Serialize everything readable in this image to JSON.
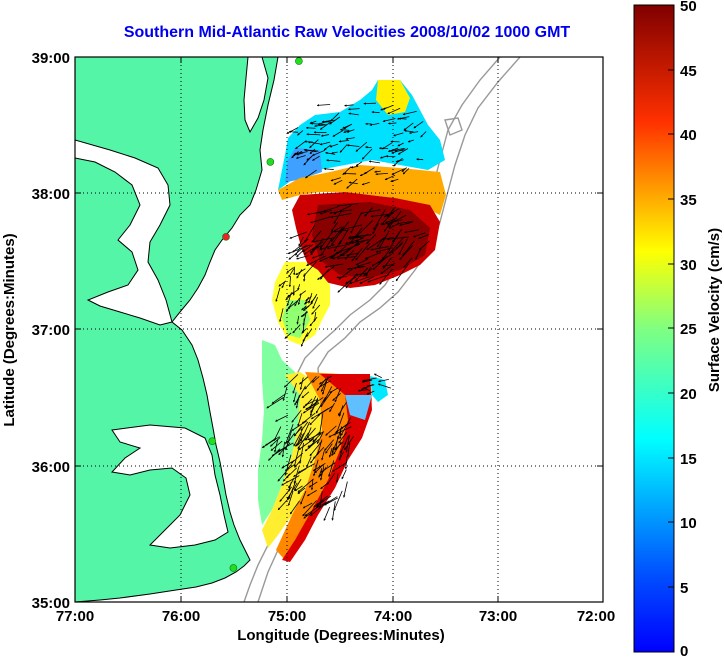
{
  "title": "Southern Mid-Atlantic Raw Velocities 2008/10/02 1000 GMT",
  "x_axis": {
    "label": "Longitude (Degrees:Minutes)",
    "ticks": [
      "77:00",
      "76:00",
      "75:00",
      "74:00",
      "73:00",
      "72:00"
    ]
  },
  "y_axis": {
    "label": "Latitude (Degrees:Minutes)",
    "ticks": [
      "39:00",
      "38:00",
      "37:00",
      "36:00",
      "35:00"
    ]
  },
  "colorbar": {
    "label": "Surface Velocity (cm/s)",
    "ticks": [
      "50",
      "45",
      "40",
      "35",
      "30",
      "25",
      "20",
      "15",
      "10",
      "5",
      "0"
    ],
    "min": 0,
    "max": 50,
    "colormap": "jet"
  },
  "colors": {
    "land": "#55f5a8",
    "title": "#0000ee",
    "coast": "#000000",
    "bathymetry": "#999999",
    "station": "#22dd22",
    "station_alt": "#ee2222"
  },
  "map_extent": {
    "lon": [
      -77,
      -72
    ],
    "lat": [
      35,
      39
    ]
  },
  "stations": [
    {
      "lon": -74.88,
      "lat": 38.97,
      "color": "green"
    },
    {
      "lon": -75.15,
      "lat": 38.23,
      "color": "green"
    },
    {
      "lon": -75.57,
      "lat": 37.68,
      "color": "red"
    },
    {
      "lon": -75.7,
      "lat": 36.18,
      "color": "green"
    },
    {
      "lon": -75.5,
      "lat": 35.25,
      "color": "green"
    }
  ]
}
